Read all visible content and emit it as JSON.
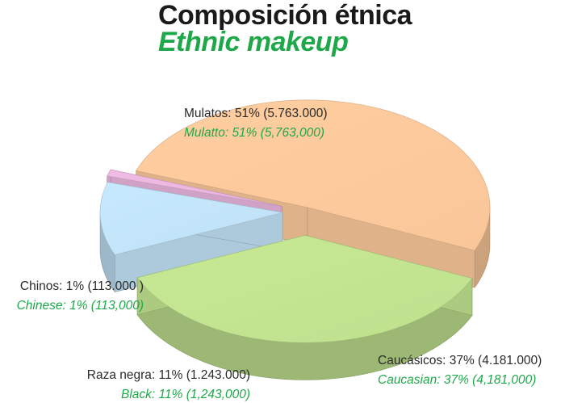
{
  "colors": {
    "title": "#1a1a1a",
    "accent_green": "#1fa84a",
    "mulatos": "#f9c699",
    "caucasicos": "#bfe08e",
    "raza_negra": "#bfe0f4",
    "chinos": "#e7b4dc"
  },
  "chart_data": {
    "type": "pie",
    "title": "Composición étnica",
    "subtitle": "Ethnic makeup",
    "slices": [
      {
        "key": "mulatos",
        "label": "Mulatos: 51% (5.763.000)",
        "label_en": "Mulatto: 51% (5,763,000)",
        "percent": 51,
        "value": 5763000
      },
      {
        "key": "caucasicos",
        "label": "Caucásicos: 37% (4.181.000)",
        "label_en": "Caucasian: 37% (4,181,000)",
        "percent": 37,
        "value": 4181000
      },
      {
        "key": "raza_negra",
        "label": "Raza negra: 11% (1.243.000)",
        "label_en": "Black: 11% (1,243,000)",
        "percent": 11,
        "value": 1243000
      },
      {
        "key": "chinos",
        "label": "Chinos: 1% (113.000 )",
        "label_en": "Chinese: 1% (113,000)",
        "percent": 1,
        "value": 113000
      }
    ],
    "legend": "none"
  }
}
